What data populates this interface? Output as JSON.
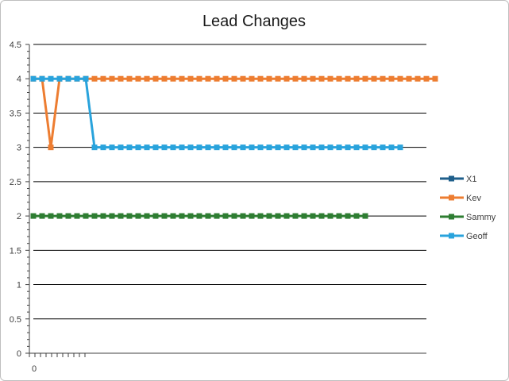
{
  "chart_data": {
    "type": "line",
    "title": "Lead Changes",
    "xlabel": "",
    "ylabel": "",
    "ylim": [
      0,
      4.5
    ],
    "y_ticks": [
      "0",
      "0.5",
      "1",
      "1.5",
      "2",
      "2.5",
      "3",
      "3.5",
      "4",
      "4.5"
    ],
    "x_tick_labels": [
      "0"
    ],
    "grid": true,
    "legend": "right",
    "series": [
      {
        "name": "X1",
        "color": "#1f5f8b",
        "values": []
      },
      {
        "name": "Kev",
        "color": "#ed7d31",
        "values": [
          4,
          4,
          3,
          4,
          4,
          4,
          4,
          4,
          4,
          4,
          4,
          4,
          4,
          4,
          4,
          4,
          4,
          4,
          4,
          4,
          4,
          4,
          4,
          4,
          4,
          4,
          4,
          4,
          4,
          4,
          4,
          4,
          4,
          4,
          4,
          4,
          4,
          4,
          4,
          4,
          4,
          4,
          4,
          4,
          4,
          4,
          4
        ]
      },
      {
        "name": "Sammy",
        "color": "#2e7d32",
        "values": [
          2,
          2,
          2,
          2,
          2,
          2,
          2,
          2,
          2,
          2,
          2,
          2,
          2,
          2,
          2,
          2,
          2,
          2,
          2,
          2,
          2,
          2,
          2,
          2,
          2,
          2,
          2,
          2,
          2,
          2,
          2,
          2,
          2,
          2,
          2,
          2,
          2,
          2,
          2
        ]
      },
      {
        "name": "Geoff",
        "color": "#29a3dc",
        "values": [
          4,
          4,
          4,
          4,
          4,
          4,
          4,
          3,
          3,
          3,
          3,
          3,
          3,
          3,
          3,
          3,
          3,
          3,
          3,
          3,
          3,
          3,
          3,
          3,
          3,
          3,
          3,
          3,
          3,
          3,
          3,
          3,
          3,
          3,
          3,
          3,
          3,
          3,
          3,
          3,
          3,
          3,
          3
        ]
      }
    ]
  }
}
